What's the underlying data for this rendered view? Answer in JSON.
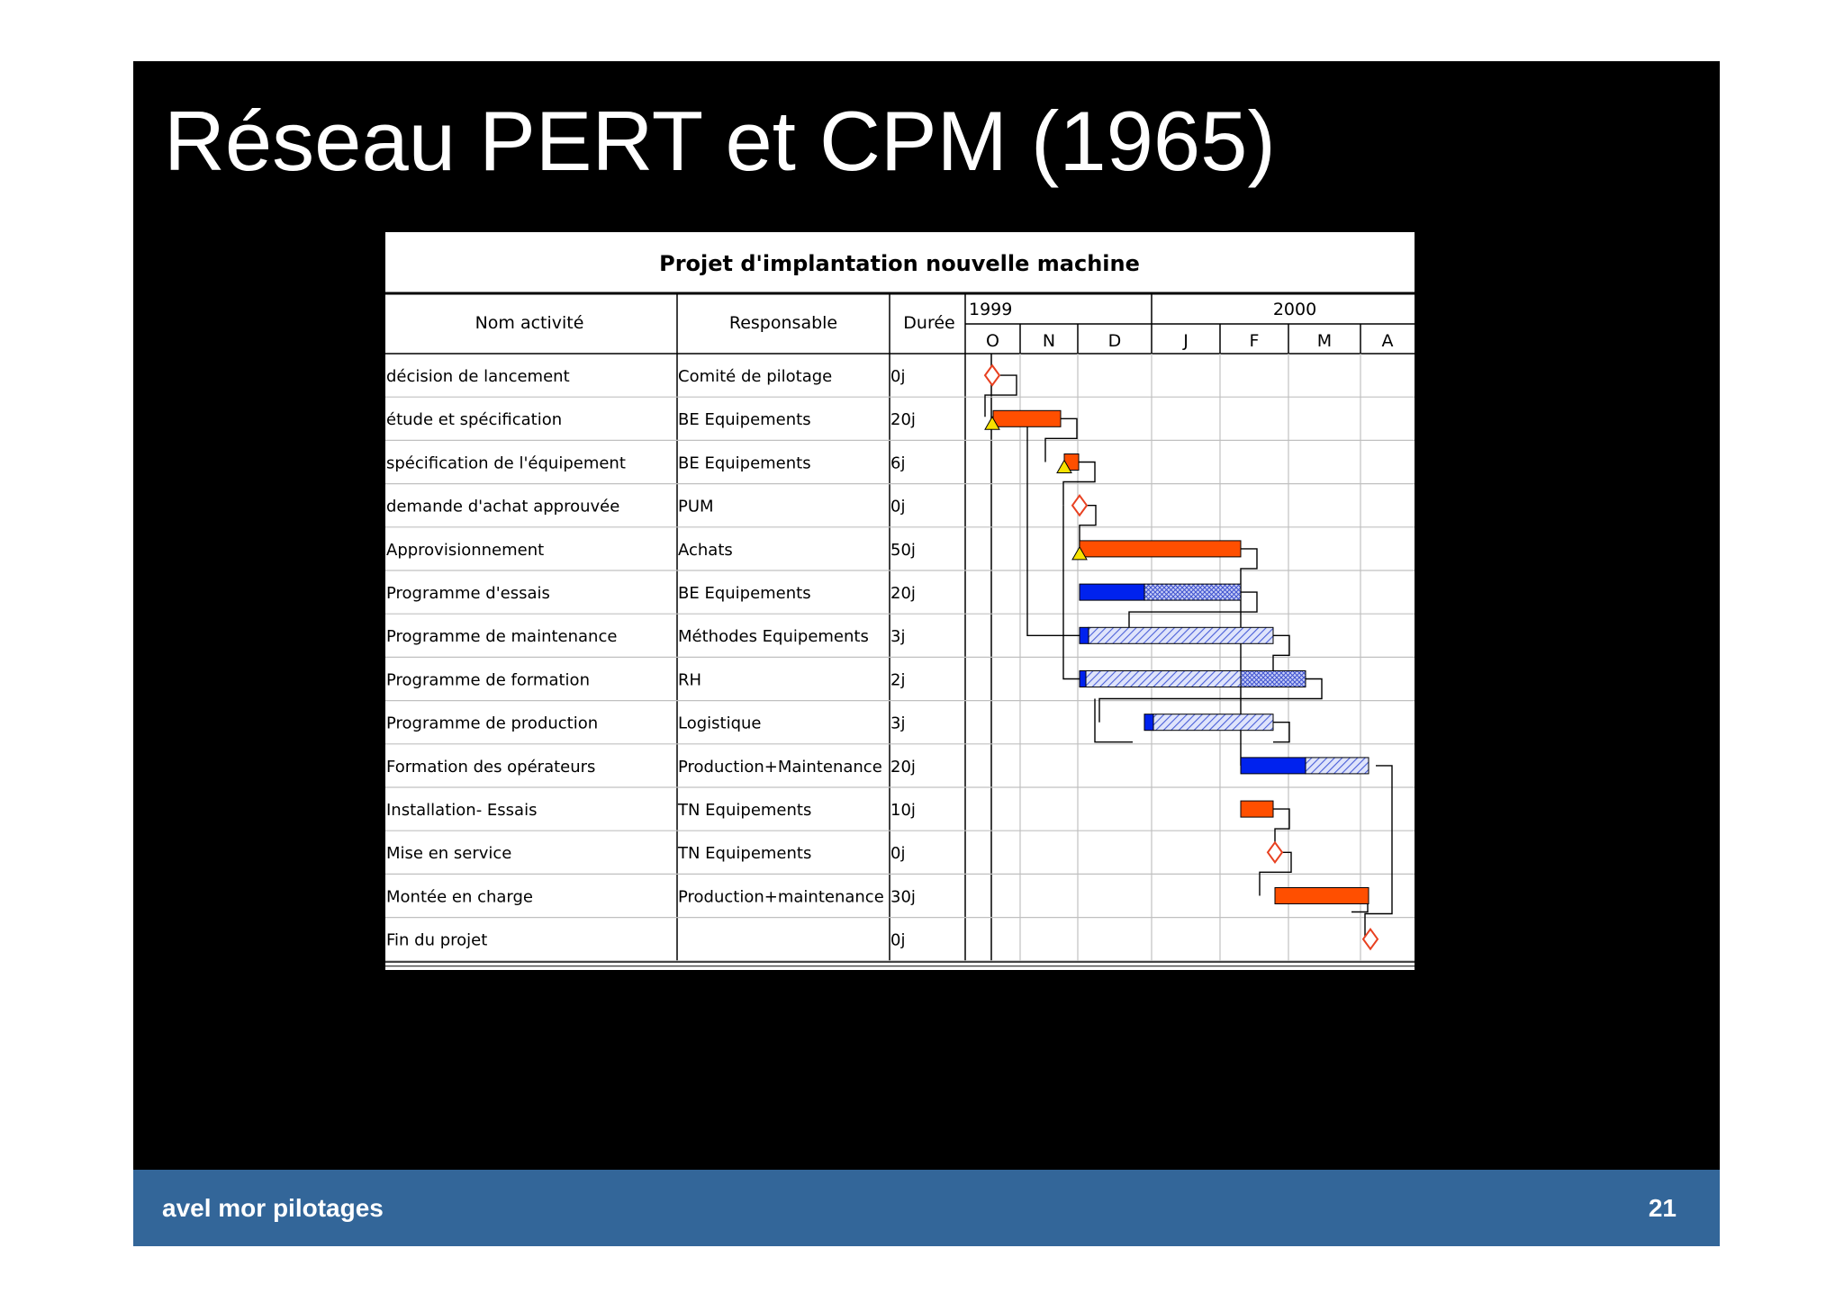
{
  "slide": {
    "title": "Réseau PERT et CPM (1965)",
    "footer_left": "avel mor pilotages",
    "page_number": "21",
    "colors": {
      "background": "#000000",
      "footer": "#336699",
      "critical_bar": "#ff4f00",
      "bar": "#0022ee",
      "hatched_bar": "#b8c4f4",
      "milestone": "#e84020",
      "start_marker": "#f7e200"
    }
  },
  "gantt": {
    "title": "Projet d'implantation nouvelle machine",
    "headers": {
      "name": "Nom activité",
      "responsible": "Responsable",
      "duration": "Durée"
    },
    "years": [
      "1999",
      "2000"
    ],
    "months": [
      "O",
      "N",
      "D",
      "J",
      "F",
      "M",
      "A"
    ],
    "tasks": [
      {
        "name": "décision de lancement",
        "responsible": "Comité de pilotage",
        "duration": "0j",
        "type": "milestone"
      },
      {
        "name": "étude et spécification",
        "responsible": "BE Equipements",
        "duration": "20j",
        "type": "critical"
      },
      {
        "name": "spécification de l'équipement",
        "responsible": "BE Equipements",
        "duration": "6j",
        "type": "critical"
      },
      {
        "name": "demande d'achat approuvée",
        "responsible": "PUM",
        "duration": "0j",
        "type": "milestone"
      },
      {
        "name": "Approvisionnement",
        "responsible": "Achats",
        "duration": "50j",
        "type": "critical"
      },
      {
        "name": "Programme d'essais",
        "responsible": "BE Equipements",
        "duration": "20j",
        "type": "task-slack"
      },
      {
        "name": "Programme de maintenance",
        "responsible": "Méthodes Equipements",
        "duration": "3j",
        "type": "task-slack"
      },
      {
        "name": "Programme de formation",
        "responsible": "RH",
        "duration": "2j",
        "type": "task-slack"
      },
      {
        "name": "Programme de production",
        "responsible": "Logistique",
        "duration": "3j",
        "type": "task-slack"
      },
      {
        "name": "Formation des opérateurs",
        "responsible": "Production+Maintenance",
        "duration": "20j",
        "type": "task-slack"
      },
      {
        "name": "Installation- Essais",
        "responsible": "TN Equipements",
        "duration": "10j",
        "type": "critical"
      },
      {
        "name": "Mise en service",
        "responsible": "TN Equipements",
        "duration": "0j",
        "type": "milestone"
      },
      {
        "name": "Montée en charge",
        "responsible": "Production+maintenance",
        "duration": "30j",
        "type": "critical"
      },
      {
        "name": "Fin du projet",
        "responsible": "",
        "duration": "0j",
        "type": "milestone"
      }
    ]
  }
}
